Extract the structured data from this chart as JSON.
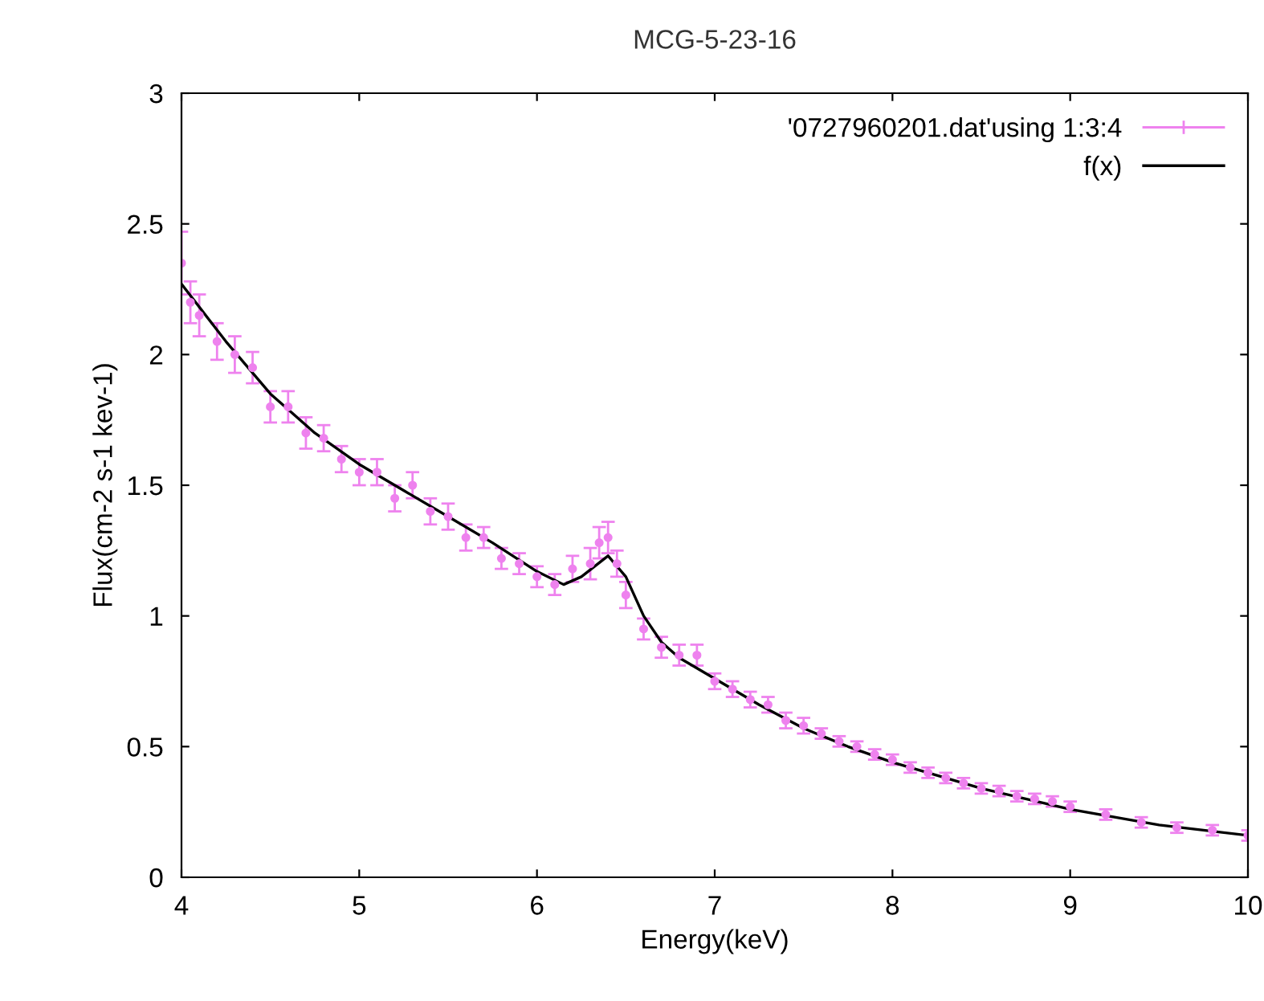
{
  "chart_data": {
    "type": "scatter",
    "title": "MCG-5-23-16",
    "xlabel": "Energy(keV)",
    "ylabel": "Flux(cm-2 s-1 kev-1)",
    "xlim": [
      4,
      10
    ],
    "xticks": [
      4,
      5,
      6,
      7,
      8,
      9,
      10
    ],
    "ylim": [
      0,
      3
    ],
    "yticks": [
      0,
      0.5,
      1,
      1.5,
      2,
      2.5,
      3
    ],
    "legend": "top right",
    "grid": false,
    "series": [
      {
        "name": "'0727960201.dat'using 1:3:4",
        "color": "#ee82ee",
        "marker": "circle",
        "x": [
          4.0,
          4.05,
          4.1,
          4.2,
          4.3,
          4.4,
          4.5,
          4.6,
          4.7,
          4.8,
          4.9,
          5.0,
          5.1,
          5.2,
          5.3,
          5.4,
          5.5,
          5.6,
          5.7,
          5.8,
          5.9,
          6.0,
          6.1,
          6.2,
          6.3,
          6.35,
          6.4,
          6.45,
          6.5,
          6.6,
          6.7,
          6.8,
          6.9,
          7.0,
          7.1,
          7.2,
          7.3,
          7.4,
          7.5,
          7.6,
          7.7,
          7.8,
          7.9,
          8.0,
          8.1,
          8.2,
          8.3,
          8.4,
          8.5,
          8.6,
          8.7,
          8.8,
          8.9,
          9.0,
          9.2,
          9.4,
          9.6,
          9.8,
          10.0
        ],
        "values": [
          2.35,
          2.2,
          2.15,
          2.05,
          2.0,
          1.95,
          1.8,
          1.8,
          1.7,
          1.68,
          1.6,
          1.55,
          1.55,
          1.45,
          1.5,
          1.4,
          1.38,
          1.3,
          1.3,
          1.22,
          1.2,
          1.15,
          1.12,
          1.18,
          1.2,
          1.28,
          1.3,
          1.2,
          1.08,
          0.95,
          0.88,
          0.85,
          0.85,
          0.75,
          0.72,
          0.68,
          0.66,
          0.6,
          0.58,
          0.55,
          0.52,
          0.5,
          0.47,
          0.45,
          0.42,
          0.4,
          0.38,
          0.36,
          0.34,
          0.33,
          0.31,
          0.3,
          0.29,
          0.27,
          0.24,
          0.21,
          0.19,
          0.18,
          0.16
        ],
        "errors": [
          0.12,
          0.08,
          0.08,
          0.07,
          0.07,
          0.06,
          0.06,
          0.06,
          0.06,
          0.05,
          0.05,
          0.05,
          0.05,
          0.05,
          0.05,
          0.05,
          0.05,
          0.05,
          0.04,
          0.04,
          0.04,
          0.04,
          0.04,
          0.05,
          0.06,
          0.06,
          0.06,
          0.05,
          0.05,
          0.04,
          0.04,
          0.04,
          0.04,
          0.03,
          0.03,
          0.03,
          0.03,
          0.03,
          0.03,
          0.02,
          0.02,
          0.02,
          0.02,
          0.02,
          0.02,
          0.02,
          0.02,
          0.02,
          0.02,
          0.02,
          0.02,
          0.02,
          0.02,
          0.02,
          0.02,
          0.02,
          0.02,
          0.02,
          0.02
        ]
      },
      {
        "name": "f(x)",
        "type": "line",
        "color": "#000000",
        "marker": "none",
        "line_style": "solid",
        "x": [
          4.0,
          4.25,
          4.5,
          4.75,
          5.0,
          5.25,
          5.5,
          5.75,
          6.0,
          6.15,
          6.25,
          6.4,
          6.5,
          6.6,
          6.7,
          6.8,
          7.0,
          7.25,
          7.5,
          7.75,
          8.0,
          8.25,
          8.5,
          8.75,
          9.0,
          9.25,
          9.5,
          9.75,
          10.0
        ],
        "values": [
          2.27,
          2.05,
          1.85,
          1.7,
          1.58,
          1.48,
          1.38,
          1.28,
          1.17,
          1.12,
          1.15,
          1.23,
          1.15,
          1.0,
          0.9,
          0.84,
          0.76,
          0.66,
          0.57,
          0.5,
          0.44,
          0.39,
          0.34,
          0.3,
          0.26,
          0.23,
          0.2,
          0.18,
          0.16
        ]
      }
    ]
  }
}
